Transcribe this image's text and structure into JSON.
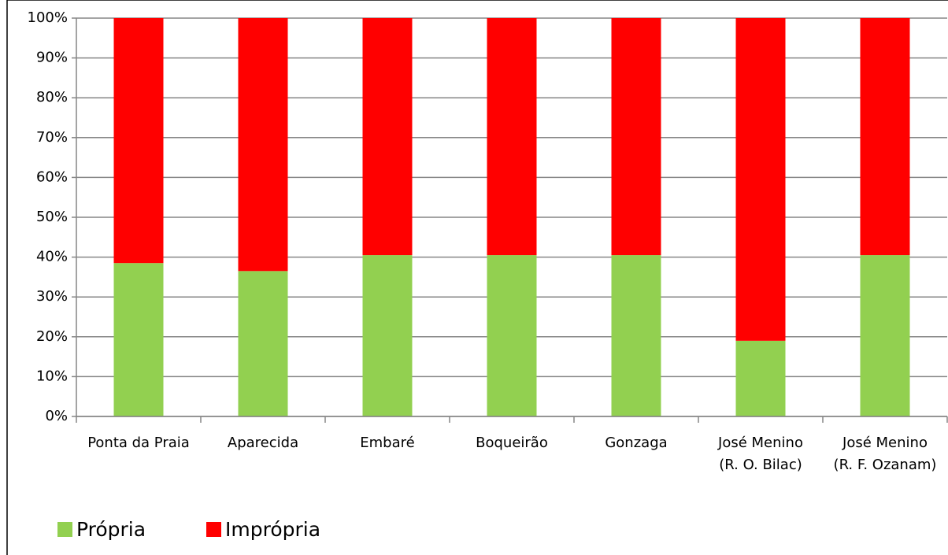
{
  "chart_data": {
    "type": "stacked_bar",
    "categories": [
      [
        "Ponta da Praia"
      ],
      [
        "Aparecida"
      ],
      [
        "Embaré"
      ],
      [
        "Boqueirão"
      ],
      [
        "Gonzaga"
      ],
      [
        "José Menino",
        "(R. O. Bilac)"
      ],
      [
        "José Menino",
        "(R. F. Ozanam)"
      ]
    ],
    "series": [
      {
        "name": "Própria",
        "color": "#92d050",
        "values": [
          38.5,
          36.5,
          40.5,
          40.5,
          40.5,
          19,
          40.5
        ]
      },
      {
        "name": "Imprópria",
        "color": "#ff0000",
        "values": [
          61.5,
          63.5,
          59.5,
          59.5,
          59.5,
          81,
          59.5
        ]
      }
    ],
    "ylim": [
      0,
      100
    ],
    "yticks": [
      {
        "value": 0,
        "label": "0%"
      },
      {
        "value": 10,
        "label": "10%"
      },
      {
        "value": 20,
        "label": "20%"
      },
      {
        "value": 30,
        "label": "30%"
      },
      {
        "value": 40,
        "label": "40%"
      },
      {
        "value": 50,
        "label": "50%"
      },
      {
        "value": 60,
        "label": "60%"
      },
      {
        "value": 70,
        "label": "70%"
      },
      {
        "value": 80,
        "label": "80%"
      },
      {
        "value": 90,
        "label": "90%"
      },
      {
        "value": 100,
        "label": "100%"
      }
    ],
    "grid": true,
    "legend": "bottom-left"
  }
}
